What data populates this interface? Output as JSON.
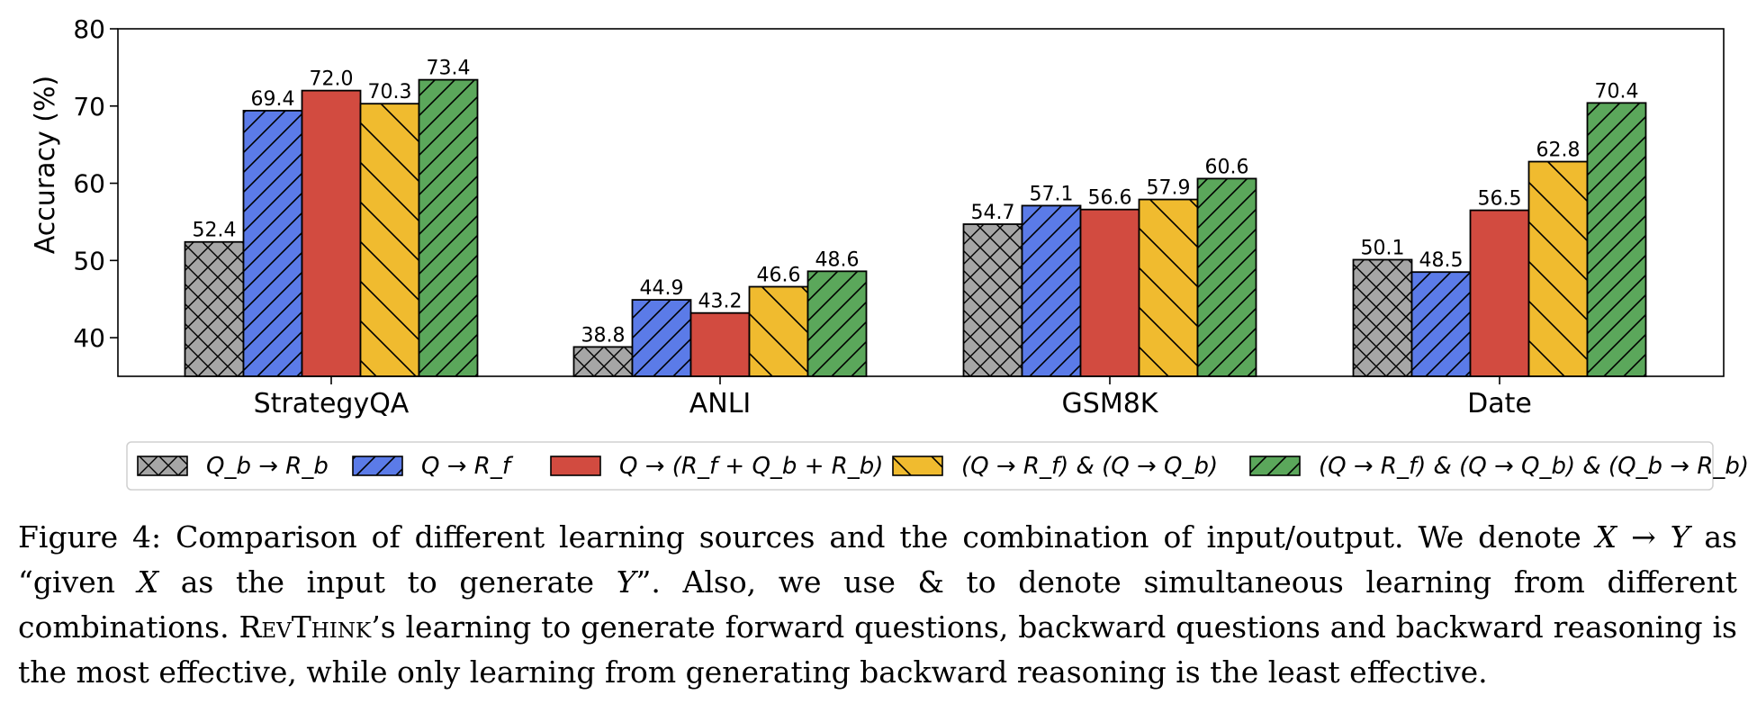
{
  "chart_data": {
    "type": "bar",
    "ylabel": "Accuracy (%)",
    "xlabel": "",
    "ylim": [
      35,
      80
    ],
    "yticks": [
      40,
      50,
      60,
      70,
      80
    ],
    "categories": [
      "StrategyQA",
      "ANLI",
      "GSM8K",
      "Date"
    ],
    "grid": false,
    "legend_position": "bottom",
    "series": [
      {
        "name": "Q_b → R_b",
        "color": "#a6a6a6",
        "hatch": "cross",
        "values": [
          52.4,
          38.8,
          54.7,
          50.1
        ]
      },
      {
        "name": "Q → R_f",
        "color": "#5b7be8",
        "hatch": "forward",
        "values": [
          69.4,
          44.9,
          57.1,
          48.5
        ]
      },
      {
        "name": "Q → (R_f + Q_b + R_b)",
        "color": "#d24b40",
        "hatch": "none",
        "values": [
          72.0,
          43.2,
          56.6,
          56.5
        ]
      },
      {
        "name": "(Q → R_f) & (Q → Q_b)",
        "color": "#f0bb2f",
        "hatch": "back",
        "values": [
          70.3,
          46.6,
          57.9,
          62.8
        ]
      },
      {
        "name": "(Q → R_f) & (Q → Q_b) & (Q_b → R_b)",
        "color": "#5ba75b",
        "hatch": "forward",
        "values": [
          73.4,
          48.6,
          60.6,
          70.4
        ]
      }
    ]
  },
  "caption": {
    "label": "Figure 4:",
    "text_a": " Comparison of different learning sources and the combination of input/output. We denote ",
    "math_a": "X → Y",
    "text_b": " as “given ",
    "math_b": "X",
    "text_c": " as the input to generate ",
    "math_c": "Y",
    "text_d": "”. Also, we use & to denote simultaneous learning from different combinations. ",
    "brand": "RevThink",
    "text_e": "’s learning to generate forward questions, backward questions and backward reasoning is the most effective, while only learning from generating backward reasoning is the least effective."
  }
}
